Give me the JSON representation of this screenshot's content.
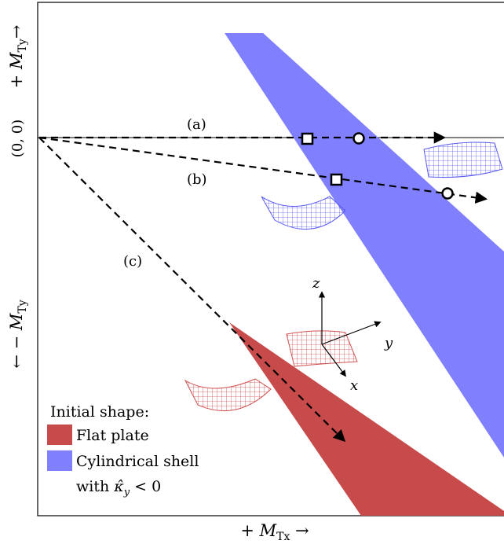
{
  "origin_label": "(0, 0)",
  "y_axis": {
    "top_prefix": "+ ",
    "bottom_prefix": "← − ",
    "symbol": "M",
    "subscript": "Ty",
    "top_arrow": "→",
    "bottom_arrow": ""
  },
  "x_axis": {
    "prefix": "+ ",
    "symbol": "M",
    "subscript": "Tx",
    "arrow": " →"
  },
  "paths": [
    {
      "id": "a",
      "label": "(a)"
    },
    {
      "id": "b",
      "label": "(b)"
    },
    {
      "id": "c",
      "label": "(c)"
    }
  ],
  "coordinate_frame": {
    "x": "x",
    "y": "y",
    "z": "z"
  },
  "legend": {
    "title": "Initial shape:",
    "items": [
      {
        "label": "Flat plate",
        "color": "#c84b4b"
      },
      {
        "label": "Cylindrical shell",
        "color": "#8080ff"
      }
    ],
    "extra_line_prefix": "with ",
    "extra_line_symbol": "κ̂",
    "extra_line_sub": "y",
    "extra_line_suffix": " < 0"
  },
  "colors": {
    "flat_plate": "#c84b4b",
    "cylindrical_shell": "#8080ff",
    "mesh_red": "#d05050",
    "mesh_blue": "#5a5af0"
  }
}
